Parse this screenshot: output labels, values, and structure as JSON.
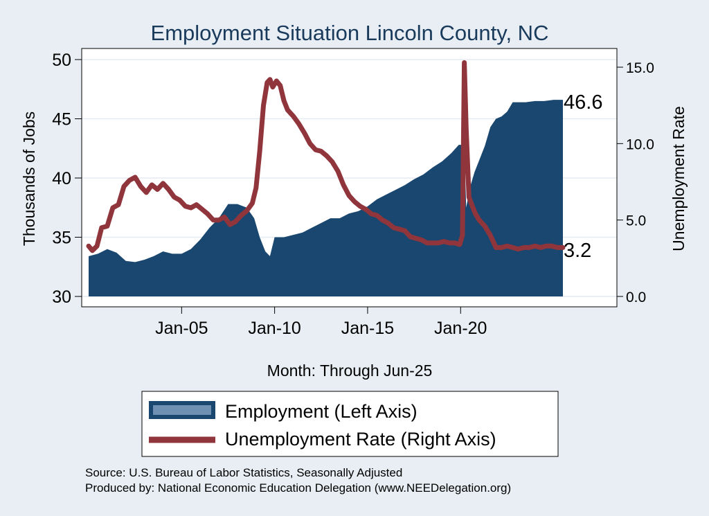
{
  "chart_data": {
    "type": "area",
    "title": "Employment Situation Lincoln  County, NC",
    "xlabel": "Month: Through Jun-25",
    "ylabel": "Thousands of Jobs",
    "y2label": "Unemployment Rate",
    "x_ticks": [
      "Jan-05",
      "Jan-10",
      "Jan-15",
      "Jan-20"
    ],
    "y_ticks": [
      "30",
      "35",
      "40",
      "45",
      "50"
    ],
    "y2_ticks": [
      "0.0",
      "5.0",
      "10.0",
      "15.0"
    ],
    "ylim": [
      30,
      50.5
    ],
    "y2lim": [
      0,
      15.3
    ],
    "xlim": [
      2000.0,
      2025.5
    ],
    "legend_position": "bottom",
    "end_labels": {
      "employment": "46.6",
      "unemployment": "3.2"
    },
    "series": [
      {
        "name": "Employment (Left Axis)",
        "type": "area",
        "color": "#1a476f",
        "x": [
          2000.0,
          2000.5,
          2001.0,
          2001.5,
          2002.0,
          2002.5,
          2003.0,
          2003.5,
          2004.0,
          2004.5,
          2005.0,
          2005.5,
          2006.0,
          2006.5,
          2007.0,
          2007.5,
          2008.0,
          2008.5,
          2008.9,
          2009.2,
          2009.5,
          2009.75,
          2010.0,
          2010.5,
          2011.0,
          2011.5,
          2012.0,
          2012.5,
          2013.0,
          2013.5,
          2014.0,
          2014.5,
          2015.0,
          2015.5,
          2016.0,
          2016.5,
          2017.0,
          2017.5,
          2018.0,
          2018.5,
          2019.0,
          2019.5,
          2019.9,
          2020.2,
          2020.3,
          2020.5,
          2020.75,
          2021.0,
          2021.3,
          2021.6,
          2021.9,
          2022.2,
          2022.5,
          2022.8,
          2023.0,
          2023.5,
          2024.0,
          2024.5,
          2025.0,
          2025.5
        ],
        "values": [
          33.4,
          33.6,
          34.0,
          33.7,
          33.0,
          32.9,
          33.1,
          33.4,
          33.8,
          33.6,
          33.6,
          34.0,
          34.8,
          35.8,
          36.6,
          37.8,
          37.8,
          37.5,
          36.6,
          35.0,
          33.8,
          33.4,
          35.0,
          35.0,
          35.2,
          35.4,
          35.8,
          36.2,
          36.6,
          36.6,
          37.0,
          37.2,
          37.6,
          38.2,
          38.6,
          39.0,
          39.4,
          39.9,
          40.3,
          40.9,
          41.4,
          42.1,
          42.8,
          42.8,
          37.5,
          39.2,
          40.5,
          41.5,
          42.7,
          44.3,
          45.0,
          45.2,
          45.6,
          46.4,
          46.4,
          46.4,
          46.5,
          46.5,
          46.6,
          46.6
        ]
      },
      {
        "name": "Unemployment Rate (Right Axis)",
        "type": "line",
        "color": "#90353b",
        "x": [
          2000.0,
          2000.2,
          2000.45,
          2000.7,
          2001.0,
          2001.3,
          2001.6,
          2001.9,
          2002.2,
          2002.5,
          2002.8,
          2003.1,
          2003.4,
          2003.7,
          2004.0,
          2004.3,
          2004.6,
          2004.9,
          2005.2,
          2005.5,
          2005.8,
          2006.1,
          2006.4,
          2006.7,
          2007.0,
          2007.3,
          2007.6,
          2007.9,
          2008.2,
          2008.5,
          2008.8,
          2009.0,
          2009.2,
          2009.4,
          2009.6,
          2009.75,
          2009.9,
          2010.1,
          2010.3,
          2010.5,
          2010.7,
          2011.0,
          2011.3,
          2011.6,
          2011.9,
          2012.2,
          2012.5,
          2012.8,
          2013.1,
          2013.4,
          2013.7,
          2014.0,
          2014.3,
          2014.6,
          2014.9,
          2015.2,
          2015.5,
          2015.8,
          2016.1,
          2016.4,
          2016.7,
          2017.0,
          2017.3,
          2017.6,
          2017.9,
          2018.2,
          2018.5,
          2018.8,
          2019.1,
          2019.4,
          2019.7,
          2019.95,
          2020.1,
          2020.2,
          2020.3,
          2020.45,
          2020.6,
          2020.8,
          2021.0,
          2021.3,
          2021.6,
          2021.9,
          2022.2,
          2022.5,
          2022.8,
          2023.1,
          2023.4,
          2023.7,
          2024.0,
          2024.3,
          2024.6,
          2024.9,
          2025.2,
          2025.5
        ],
        "values": [
          3.3,
          3.0,
          3.3,
          4.5,
          4.6,
          5.8,
          6.0,
          7.2,
          7.6,
          7.8,
          7.2,
          6.8,
          7.3,
          7.0,
          7.4,
          7.0,
          6.5,
          6.3,
          5.9,
          5.8,
          6.0,
          5.7,
          5.4,
          5.0,
          5.0,
          5.2,
          4.7,
          4.9,
          5.3,
          5.6,
          6.1,
          7.1,
          9.5,
          12.5,
          14.0,
          14.2,
          13.7,
          14.1,
          13.8,
          12.8,
          12.2,
          11.8,
          11.3,
          10.7,
          10.0,
          9.6,
          9.5,
          9.2,
          8.8,
          8.2,
          7.3,
          6.6,
          6.2,
          5.9,
          5.7,
          5.4,
          5.3,
          5.0,
          4.8,
          4.5,
          4.4,
          4.3,
          3.9,
          3.8,
          3.7,
          3.5,
          3.5,
          3.5,
          3.6,
          3.5,
          3.5,
          3.4,
          4.0,
          15.3,
          11.0,
          6.5,
          6.0,
          5.4,
          5.0,
          4.6,
          4.0,
          3.2,
          3.2,
          3.3,
          3.2,
          3.1,
          3.2,
          3.2,
          3.3,
          3.2,
          3.3,
          3.3,
          3.2,
          3.2
        ]
      }
    ]
  },
  "colors": {
    "background": "#e8eef3",
    "plot_background": "#ffffff",
    "grid": "#e5ecf1",
    "title": "#1a3a5c"
  },
  "notes": {
    "source": "Source: U.S. Bureau of Labor Statistics, Seasonally Adjusted",
    "produced_by": "Produced by: National Economic Education Delegation (www.NEEDelegation.org)"
  }
}
